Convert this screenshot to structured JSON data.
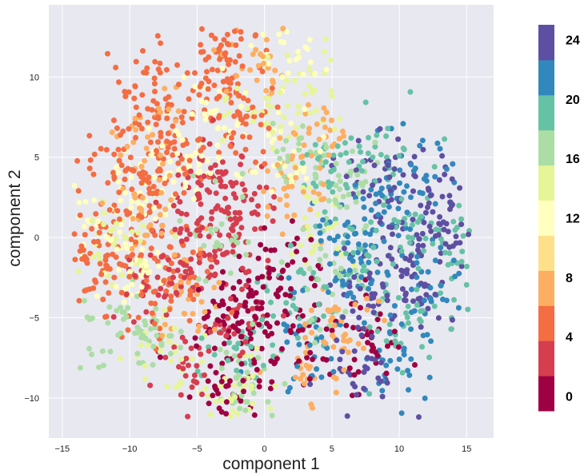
{
  "chart_data": {
    "type": "scatter",
    "xlabel": "component 1",
    "ylabel": "component 2",
    "xlim": [
      -16,
      17
    ],
    "ylim": [
      -12.5,
      14.5
    ],
    "x_ticks": [
      -15,
      -10,
      -5,
      0,
      5,
      10,
      15
    ],
    "x_tick_labels": [
      "−15",
      "−10",
      "−5",
      "0",
      "5",
      "10",
      "15"
    ],
    "y_ticks": [
      -10,
      -5,
      0,
      5,
      10
    ],
    "y_tick_labels": [
      "−10",
      "−5",
      "0",
      "5",
      "10"
    ],
    "grid": true,
    "plot_background": "#e8e8f0",
    "grid_color": "#ffffff",
    "colorbar": {
      "min": -1,
      "max": 25,
      "ticks": [
        0,
        4,
        8,
        12,
        16,
        20,
        24
      ],
      "tick_labels": [
        "0",
        "4",
        "8",
        "12",
        "16",
        "20",
        "24"
      ],
      "colors": [
        "#9e0142",
        "#d53e4f",
        "#f46d43",
        "#fdae61",
        "#fee08b",
        "#ffffbf",
        "#e6f598",
        "#abdda4",
        "#66c2a5",
        "#3288bd",
        "#5e4fa2"
      ]
    },
    "clusters": [
      {
        "class_value": 0,
        "points": [
          [
            0,
            -5
          ],
          [
            -1.5,
            -3
          ],
          [
            -3,
            -10.5
          ],
          [
            4,
            -6
          ],
          [
            -1,
            -8
          ],
          [
            8,
            -7
          ],
          [
            1.5,
            -2
          ],
          [
            -3.5,
            -6
          ]
        ]
      },
      {
        "class_value": 2,
        "points": [
          [
            -5,
            -2
          ],
          [
            -6,
            0
          ],
          [
            -2,
            2
          ],
          [
            -4,
            3
          ],
          [
            -2,
            -5
          ],
          [
            -8,
            -3
          ],
          [
            -6,
            -8
          ],
          [
            -3,
            4
          ],
          [
            -1.5,
            0
          ]
        ]
      },
      {
        "class_value": 4,
        "points": [
          [
            -9,
            9.5
          ],
          [
            -7,
            7
          ],
          [
            -12,
            -2
          ],
          [
            -6,
            -2
          ],
          [
            -2.5,
            12.5
          ],
          [
            -10,
            1
          ],
          [
            -4,
            10
          ],
          [
            -8,
            4
          ]
        ]
      },
      {
        "class_value": 6,
        "points": [
          [
            -3,
            9
          ],
          [
            -12.5,
            -1
          ],
          [
            -7,
            6
          ],
          [
            -1,
            7
          ],
          [
            -11,
            4
          ],
          [
            -9,
            -4
          ]
        ]
      },
      {
        "class_value": 8,
        "points": [
          [
            -9,
            1.5
          ],
          [
            2,
            3
          ],
          [
            -6,
            -4
          ],
          [
            4,
            6
          ],
          [
            6,
            -5
          ],
          [
            -8,
            7
          ],
          [
            3,
            -8
          ],
          [
            0,
            11
          ]
        ]
      },
      {
        "class_value": 12,
        "points": [
          [
            2,
            11
          ],
          [
            -9,
            3
          ],
          [
            -12,
            1
          ],
          [
            -6,
            5
          ],
          [
            -10,
            -2
          ],
          [
            1,
            4
          ],
          [
            -4,
            7
          ]
        ]
      },
      {
        "class_value": 14,
        "points": [
          [
            0,
            8
          ],
          [
            -11,
            0
          ],
          [
            -2,
            -10
          ],
          [
            4,
            1
          ],
          [
            3,
            9
          ],
          [
            -7,
            -7
          ]
        ]
      },
      {
        "class_value": 16,
        "points": [
          [
            -3,
            0
          ],
          [
            5,
            -3
          ],
          [
            -11,
            -6
          ],
          [
            6,
            3
          ],
          [
            -1,
            -9
          ],
          [
            3,
            5
          ],
          [
            -8,
            -6
          ]
        ]
      },
      {
        "class_value": 19,
        "points": [
          [
            7,
            -1
          ],
          [
            14,
            -2
          ],
          [
            5,
            4
          ],
          [
            12,
            1
          ],
          [
            -2,
            -7
          ],
          [
            8,
            5
          ],
          [
            10,
            -6
          ],
          [
            3,
            -4
          ]
        ]
      },
      {
        "class_value": 21,
        "points": [
          [
            10,
            -7
          ],
          [
            6,
            0
          ],
          [
            9,
            2
          ],
          [
            12,
            -3
          ],
          [
            3,
            -6
          ],
          [
            7,
            -2
          ],
          [
            11,
            4
          ]
        ]
      },
      {
        "class_value": 24,
        "points": [
          [
            10,
            -1
          ],
          [
            13,
            0
          ],
          [
            8,
            -4
          ],
          [
            12,
            3
          ],
          [
            8.5,
            3.5
          ],
          [
            12,
            -3.5
          ],
          [
            7,
            -8
          ]
        ]
      }
    ]
  }
}
